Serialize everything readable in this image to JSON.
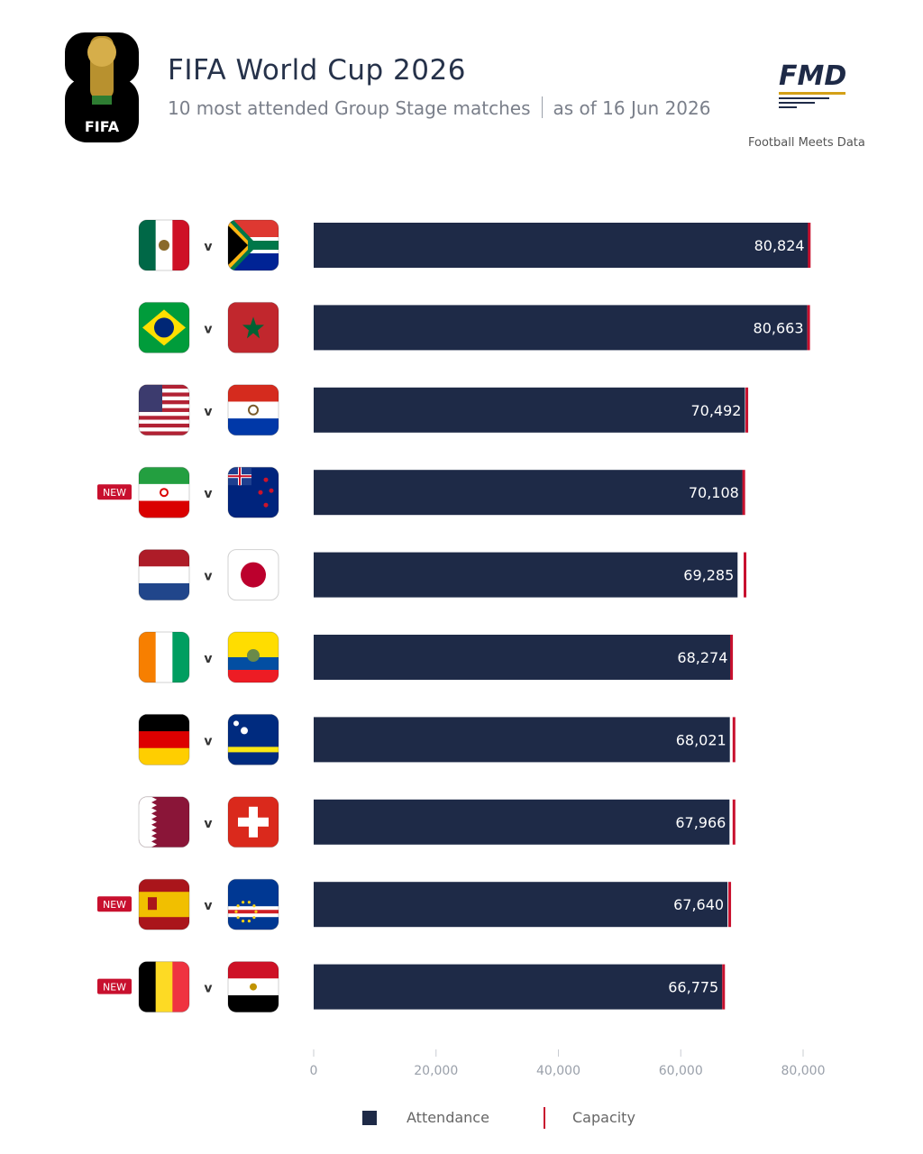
{
  "header": {
    "logo_text": "FIFA",
    "title": "FIFA World Cup 2026",
    "subtitle_left": "10 most attended Group Stage matches",
    "subtitle_right": "as of 16 Jun 2026",
    "brand": "FMD",
    "brand_tagline": "Football Meets Data"
  },
  "colors": {
    "bar": "#1e2a47",
    "capacity": "#c8102e",
    "new_badge": "#c8102e"
  },
  "chart_data": {
    "type": "bar",
    "orientation": "horizontal",
    "xlim": [
      0,
      80000
    ],
    "x_ticks": [
      0,
      20000,
      40000,
      60000,
      80000
    ],
    "x_tick_labels": [
      "0",
      "20,000",
      "40,000",
      "60,000",
      "80,000"
    ],
    "separator_label": "v",
    "new_label": "NEW",
    "legend": [
      {
        "name": "Attendance",
        "marker": "square"
      },
      {
        "name": "Capacity",
        "marker": "line"
      }
    ],
    "matches": [
      {
        "home": "Mexico",
        "away": "South Africa",
        "home_icon": "mexico-flag-icon",
        "away_icon": "south-africa-flag-icon",
        "attendance": 80824,
        "capacity": 81000,
        "label": "80,824",
        "new": false
      },
      {
        "home": "Brazil",
        "away": "Morocco",
        "home_icon": "brazil-flag-icon",
        "away_icon": "morocco-flag-icon",
        "attendance": 80663,
        "capacity": 80900,
        "label": "80,663",
        "new": false
      },
      {
        "home": "USA",
        "away": "Paraguay",
        "home_icon": "usa-flag-icon",
        "away_icon": "paraguay-flag-icon",
        "attendance": 70492,
        "capacity": 70800,
        "label": "70,492",
        "new": false
      },
      {
        "home": "Iran",
        "away": "New Zealand",
        "home_icon": "iran-flag-icon",
        "away_icon": "new-zealand-flag-icon",
        "attendance": 70108,
        "capacity": 70300,
        "label": "70,108",
        "new": true
      },
      {
        "home": "Netherlands",
        "away": "Japan",
        "home_icon": "netherlands-flag-icon",
        "away_icon": "japan-flag-icon",
        "attendance": 69285,
        "capacity": 70500,
        "label": "69,285",
        "new": false
      },
      {
        "home": "Ivory Coast",
        "away": "Ecuador",
        "home_icon": "ivory-coast-flag-icon",
        "away_icon": "ecuador-flag-icon",
        "attendance": 68274,
        "capacity": 68300,
        "label": "68,274",
        "new": false
      },
      {
        "home": "Germany",
        "away": "Curaçao",
        "home_icon": "germany-flag-icon",
        "away_icon": "curacao-flag-icon",
        "attendance": 68021,
        "capacity": 68700,
        "label": "68,021",
        "new": false
      },
      {
        "home": "Qatar",
        "away": "Switzerland",
        "home_icon": "qatar-flag-icon",
        "away_icon": "switzerland-flag-icon",
        "attendance": 67966,
        "capacity": 68700,
        "label": "67,966",
        "new": false
      },
      {
        "home": "Spain",
        "away": "Cape Verde",
        "home_icon": "spain-flag-icon",
        "away_icon": "cape-verde-flag-icon",
        "attendance": 67640,
        "capacity": 68000,
        "label": "67,640",
        "new": true
      },
      {
        "home": "Belgium",
        "away": "Egypt",
        "home_icon": "belgium-flag-icon",
        "away_icon": "egypt-flag-icon",
        "attendance": 66775,
        "capacity": 67000,
        "label": "66,775",
        "new": true
      }
    ]
  }
}
